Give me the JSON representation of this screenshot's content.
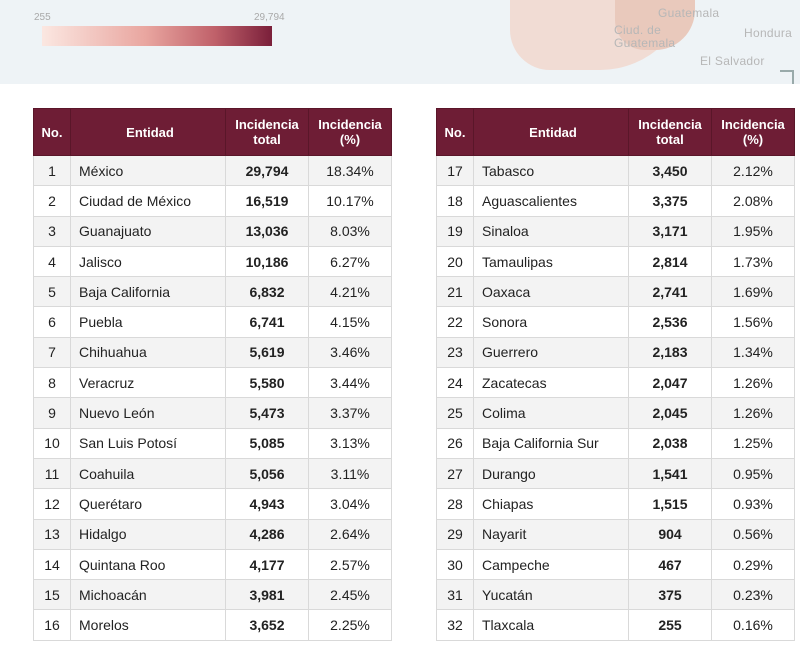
{
  "map": {
    "legend_min": "255",
    "legend_max": "29,794",
    "labels": [
      "Guatemala",
      "Ciud. de Guatemala",
      "Hondura",
      "El Salvador"
    ]
  },
  "headers": {
    "no": "No.",
    "entidad": "Entidad",
    "total": "Incidencia total",
    "pct": "Incidencia (%)"
  },
  "left_rows": [
    {
      "no": "1",
      "entidad": "México",
      "total": "29,794",
      "pct": "18.34%"
    },
    {
      "no": "2",
      "entidad": "Ciudad de México",
      "total": "16,519",
      "pct": "10.17%"
    },
    {
      "no": "3",
      "entidad": "Guanajuato",
      "total": "13,036",
      "pct": "8.03%"
    },
    {
      "no": "4",
      "entidad": "Jalisco",
      "total": "10,186",
      "pct": "6.27%"
    },
    {
      "no": "5",
      "entidad": "Baja California",
      "total": "6,832",
      "pct": "4.21%"
    },
    {
      "no": "6",
      "entidad": "Puebla",
      "total": "6,741",
      "pct": "4.15%"
    },
    {
      "no": "7",
      "entidad": "Chihuahua",
      "total": "5,619",
      "pct": "3.46%"
    },
    {
      "no": "8",
      "entidad": "Veracruz",
      "total": "5,580",
      "pct": "3.44%"
    },
    {
      "no": "9",
      "entidad": "Nuevo León",
      "total": "5,473",
      "pct": "3.37%"
    },
    {
      "no": "10",
      "entidad": "San Luis Potosí",
      "total": "5,085",
      "pct": "3.13%"
    },
    {
      "no": "11",
      "entidad": "Coahuila",
      "total": "5,056",
      "pct": "3.11%"
    },
    {
      "no": "12",
      "entidad": "Querétaro",
      "total": "4,943",
      "pct": "3.04%"
    },
    {
      "no": "13",
      "entidad": "Hidalgo",
      "total": "4,286",
      "pct": "2.64%"
    },
    {
      "no": "14",
      "entidad": "Quintana Roo",
      "total": "4,177",
      "pct": "2.57%"
    },
    {
      "no": "15",
      "entidad": "Michoacán",
      "total": "3,981",
      "pct": "2.45%"
    },
    {
      "no": "16",
      "entidad": "Morelos",
      "total": "3,652",
      "pct": "2.25%"
    }
  ],
  "right_rows": [
    {
      "no": "17",
      "entidad": "Tabasco",
      "total": "3,450",
      "pct": "2.12%"
    },
    {
      "no": "18",
      "entidad": "Aguascalientes",
      "total": "3,375",
      "pct": "2.08%"
    },
    {
      "no": "19",
      "entidad": "Sinaloa",
      "total": "3,171",
      "pct": "1.95%"
    },
    {
      "no": "20",
      "entidad": "Tamaulipas",
      "total": "2,814",
      "pct": "1.73%"
    },
    {
      "no": "21",
      "entidad": "Oaxaca",
      "total": "2,741",
      "pct": "1.69%"
    },
    {
      "no": "22",
      "entidad": "Sonora",
      "total": "2,536",
      "pct": "1.56%"
    },
    {
      "no": "23",
      "entidad": "Guerrero",
      "total": "2,183",
      "pct": "1.34%"
    },
    {
      "no": "24",
      "entidad": "Zacatecas",
      "total": "2,047",
      "pct": "1.26%"
    },
    {
      "no": "25",
      "entidad": "Colima",
      "total": "2,045",
      "pct": "1.26%"
    },
    {
      "no": "26",
      "entidad": "Baja California Sur",
      "total": "2,038",
      "pct": "1.25%"
    },
    {
      "no": "27",
      "entidad": "Durango",
      "total": "1,541",
      "pct": "0.95%"
    },
    {
      "no": "28",
      "entidad": "Chiapas",
      "total": "1,515",
      "pct": "0.93%"
    },
    {
      "no": "29",
      "entidad": "Nayarit",
      "total": "904",
      "pct": "0.56%"
    },
    {
      "no": "30",
      "entidad": "Campeche",
      "total": "467",
      "pct": "0.29%"
    },
    {
      "no": "31",
      "entidad": "Yucatán",
      "total": "375",
      "pct": "0.23%"
    },
    {
      "no": "32",
      "entidad": "Tlaxcala",
      "total": "255",
      "pct": "0.16%"
    }
  ]
}
